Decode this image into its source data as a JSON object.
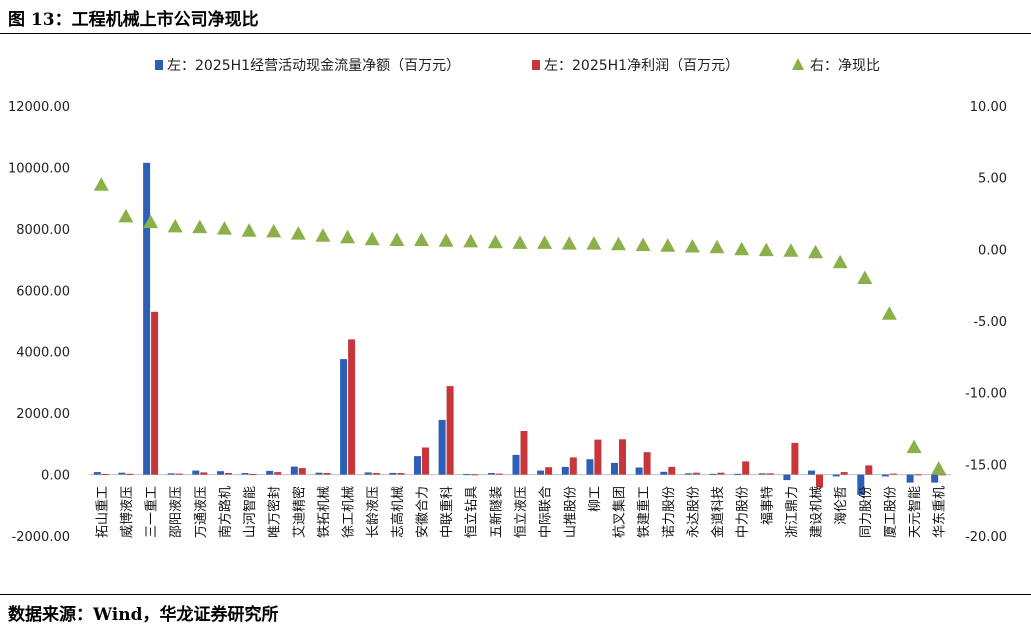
{
  "figure_title": "图 13：工程机械上市公司净现比",
  "source": "数据来源：Wind，华龙证券研究所",
  "colors": {
    "cashflow": "#2e5fb8",
    "profit": "#c8363a",
    "ratio": "#8bb04a"
  },
  "chart_data": {
    "type": "bar",
    "legend": {
      "cashflow": "左：2025H1经营活动现金流量净额（百万元）",
      "profit": "左：2025H1净利润（百万元）",
      "ratio": "右：净现比"
    },
    "categories": [
      "拓山重工",
      "威博液压",
      "三一重工",
      "邵阳液压",
      "万通液压",
      "南方路机",
      "山河智能",
      "唯万密封",
      "艾迪精密",
      "铁拓机械",
      "徐工机械",
      "长龄液压",
      "志高机械",
      "安徽合力",
      "中联重科",
      "恒立钻具",
      "五新隧装",
      "恒立液压",
      "中际联合",
      "山推股份",
      "柳工",
      "杭叉集团",
      "铁建重工",
      "诺力股份",
      "永达股份",
      "金道科技",
      "中力股份",
      "福事特",
      "浙江鼎力",
      "建设机械",
      "海伦哲",
      "同力股份",
      "厦工股份",
      "天元智能",
      "华东重机"
    ],
    "series": [
      {
        "name": "左：2025H1经营活动现金流量净额（百万元）",
        "axis": "left",
        "values": [
          80,
          60,
          10150,
          40,
          130,
          110,
          50,
          120,
          260,
          60,
          3760,
          70,
          55,
          600,
          1780,
          15,
          50,
          640,
          130,
          250,
          500,
          380,
          230,
          90,
          40,
          25,
          25,
          40,
          -180,
          130,
          -60,
          -660,
          -60,
          -260,
          -260
        ]
      },
      {
        "name": "左：2025H1净利润（百万元）",
        "axis": "left",
        "values": [
          20,
          25,
          5300,
          30,
          70,
          50,
          20,
          80,
          210,
          50,
          4400,
          50,
          50,
          880,
          2880,
          10,
          30,
          1420,
          240,
          560,
          1140,
          1150,
          730,
          250,
          60,
          60,
          430,
          40,
          1030,
          -420,
          80,
          300,
          30,
          10,
          10
        ]
      },
      {
        "name": "右：净现比",
        "axis": "right",
        "values": [
          4.5,
          2.3,
          1.9,
          1.6,
          1.55,
          1.45,
          1.3,
          1.25,
          1.1,
          0.95,
          0.85,
          0.7,
          0.65,
          0.65,
          0.6,
          0.55,
          0.5,
          0.45,
          0.45,
          0.4,
          0.4,
          0.35,
          0.3,
          0.25,
          0.2,
          0.15,
          0.0,
          -0.05,
          -0.1,
          -0.2,
          -0.9,
          -2.0,
          -4.5,
          -13.8,
          -15.3
        ]
      }
    ],
    "yleft": {
      "lim": [
        -2000,
        12000
      ],
      "ticks": [
        "-2000.00",
        "0.00",
        "2000.00",
        "4000.00",
        "6000.00",
        "8000.00",
        "10000.00",
        "12000.00"
      ]
    },
    "yright": {
      "lim": [
        -20,
        10
      ],
      "ticks": [
        "-20.00",
        "-15.00",
        "-10.00",
        "-5.00",
        "0.00",
        "5.00",
        "10.00"
      ]
    },
    "grid": false,
    "legend_position": "top"
  }
}
